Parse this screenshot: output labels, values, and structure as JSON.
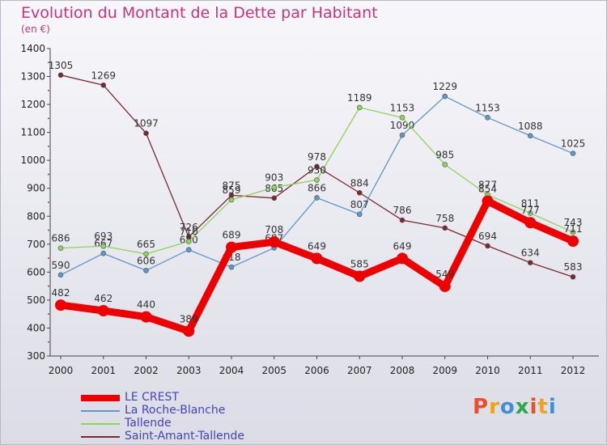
{
  "title": "Evolution du Montant de la Dette par Habitant",
  "subtitle": "(en €)",
  "logo": {
    "letters": [
      "P",
      "r",
      "o",
      "x",
      "i",
      "t",
      "i"
    ],
    "colors": [
      "#e8502a",
      "#f0a21b",
      "#3f8fd8",
      "#2ea84a",
      "#e8502a",
      "#f0a21b",
      "#3f8fd8"
    ]
  },
  "chart_data": {
    "type": "line",
    "x": [
      "2000",
      "2001",
      "2002",
      "2003",
      "2004",
      "2005",
      "2006",
      "2007",
      "2008",
      "2009",
      "2010",
      "2011",
      "2012"
    ],
    "ylim": [
      300,
      1400
    ],
    "yticks": [
      300,
      400,
      500,
      600,
      700,
      800,
      900,
      1000,
      1100,
      1200,
      1300,
      1400
    ],
    "grid": false,
    "legend": "bottom-left",
    "series": [
      {
        "name": "Saint-Amant-Tallende",
        "color": "#7a2a2e",
        "values": [
          1305,
          1269,
          1097,
          726,
          875,
          865,
          978,
          884,
          786,
          758,
          694,
          634,
          583
        ],
        "labels": [
          "1305",
          "1269",
          "1097",
          "726",
          "875",
          "865",
          "978",
          "884",
          "786",
          "758",
          "694",
          "634",
          "583"
        ]
      },
      {
        "name": "La Roche-Blanche",
        "color": "#5e97c9",
        "values": [
          590,
          667,
          606,
          680,
          618,
          687,
          866,
          807,
          1090,
          1229,
          1153,
          1088,
          1025
        ],
        "labels": [
          "590",
          "667",
          "606",
          "680",
          "618",
          "687",
          "866",
          "807",
          "1090",
          "1229",
          "1153",
          "1088",
          "1025"
        ]
      },
      {
        "name": "Tallende",
        "color": "#8ed35a",
        "values": [
          686,
          693,
          665,
          710,
          859,
          903,
          930,
          1189,
          1153,
          985,
          877,
          811,
          743
        ],
        "labels": [
          "686",
          "693",
          "665",
          "710",
          "859",
          "903",
          "930",
          "1189",
          "1153",
          "985",
          "877",
          "811",
          "743"
        ]
      },
      {
        "name": "LE CREST",
        "color": "#ee0000",
        "values": [
          482,
          462,
          440,
          389,
          689,
          708,
          649,
          585,
          649,
          549,
          854,
          777,
          711
        ],
        "labels": [
          "482",
          "462",
          "440",
          "389",
          "689",
          "708",
          "649",
          "585",
          "649",
          "549",
          "854",
          "777",
          "711"
        ]
      }
    ],
    "legend_order": [
      3,
      1,
      2,
      0
    ]
  }
}
